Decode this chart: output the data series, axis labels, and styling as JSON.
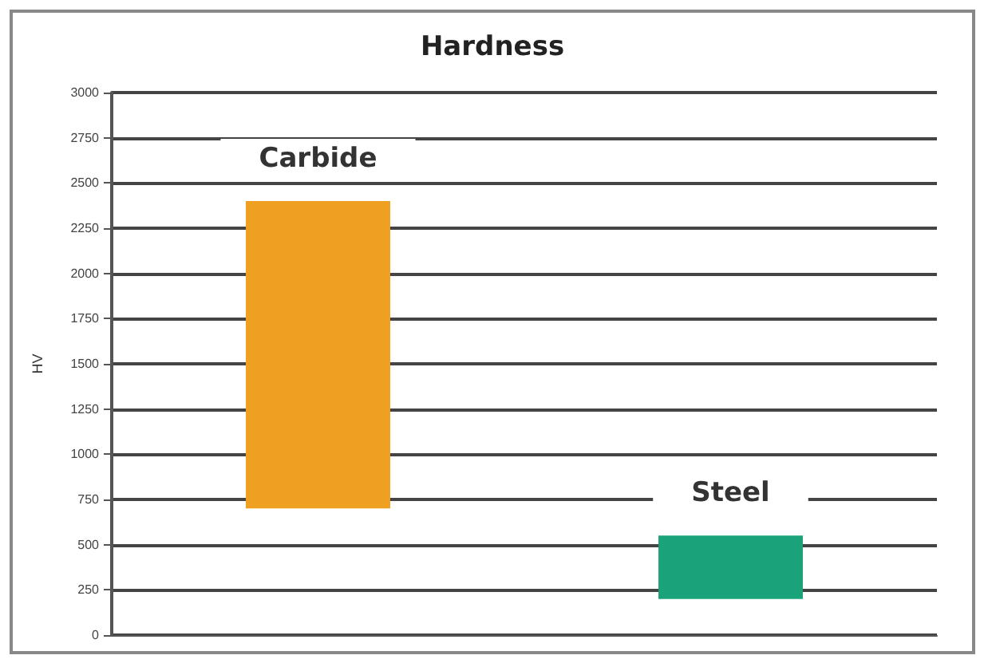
{
  "chart_data": {
    "type": "bar",
    "title": "Hardness",
    "ylabel": "HV",
    "categories": [
      "Carbide",
      "Steel"
    ],
    "base": [
      700,
      200
    ],
    "values": [
      1700,
      350
    ],
    "colors": [
      "#f0a020",
      "#1aa37a"
    ],
    "ylim": [
      0,
      3000
    ],
    "yticks": [
      0,
      250,
      500,
      750,
      1000,
      1250,
      1500,
      1750,
      2000,
      2250,
      2500,
      2750,
      3000
    ],
    "grid": "y"
  }
}
